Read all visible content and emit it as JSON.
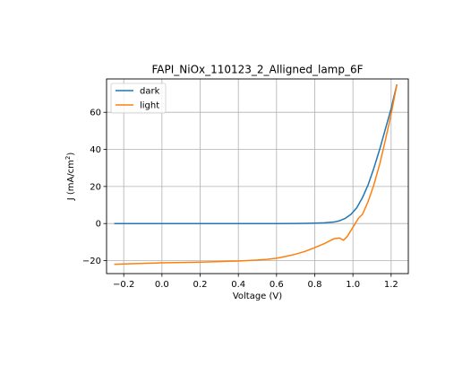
{
  "chart_data": {
    "type": "line",
    "title": "FAPI_NiOx_110123_2_Alligned_lamp_6F",
    "xlabel": "Voltage (V)",
    "ylabel_main": "J (mA/cm",
    "ylabel_sup": "2",
    "ylabel_close": ")",
    "xlim": [
      -0.29,
      1.29
    ],
    "ylim": [
      -27,
      78
    ],
    "grid": true,
    "legend_position": "upper left",
    "xticks": [
      -0.2,
      0.0,
      0.2,
      0.4,
      0.6,
      0.8,
      1.0,
      1.2
    ],
    "xtick_labels": [
      "−0.2",
      "0.0",
      "0.2",
      "0.4",
      "0.6",
      "0.8",
      "1.0",
      "1.2"
    ],
    "yticks": [
      -20,
      0,
      20,
      40,
      60
    ],
    "ytick_labels": [
      "−20",
      "0",
      "20",
      "40",
      "60"
    ],
    "series": [
      {
        "name": "dark",
        "color": "#1f77b4",
        "x": [
          -0.25,
          -0.2,
          -0.1,
          0.0,
          0.1,
          0.2,
          0.3,
          0.4,
          0.5,
          0.6,
          0.7,
          0.75,
          0.8,
          0.85,
          0.9,
          0.93,
          0.96,
          0.99,
          1.02,
          1.05,
          1.08,
          1.11,
          1.14,
          1.17,
          1.2,
          1.23
        ],
        "y": [
          0,
          0,
          0,
          0,
          0,
          0,
          0,
          0,
          0,
          0,
          0.05,
          0.1,
          0.2,
          0.4,
          0.8,
          1.5,
          2.8,
          5,
          8.5,
          14,
          21,
          30,
          40,
          51,
          62,
          75
        ]
      },
      {
        "name": "light",
        "color": "#ff7f0e",
        "x": [
          -0.25,
          -0.2,
          -0.1,
          0.0,
          0.1,
          0.2,
          0.3,
          0.4,
          0.5,
          0.55,
          0.6,
          0.65,
          0.7,
          0.75,
          0.8,
          0.85,
          0.9,
          0.93,
          0.95,
          0.97,
          1.0,
          1.03,
          1.05,
          1.08,
          1.11,
          1.14,
          1.17,
          1.2,
          1.23
        ],
        "y": [
          -22,
          -21.8,
          -21.5,
          -21.2,
          -21,
          -20.8,
          -20.5,
          -20.2,
          -19.7,
          -19.3,
          -18.7,
          -17.7,
          -16.5,
          -15,
          -13,
          -10.8,
          -8.2,
          -7.8,
          -9,
          -7,
          -2,
          3,
          5,
          12,
          21,
          32,
          45,
          59,
          75
        ]
      }
    ]
  }
}
